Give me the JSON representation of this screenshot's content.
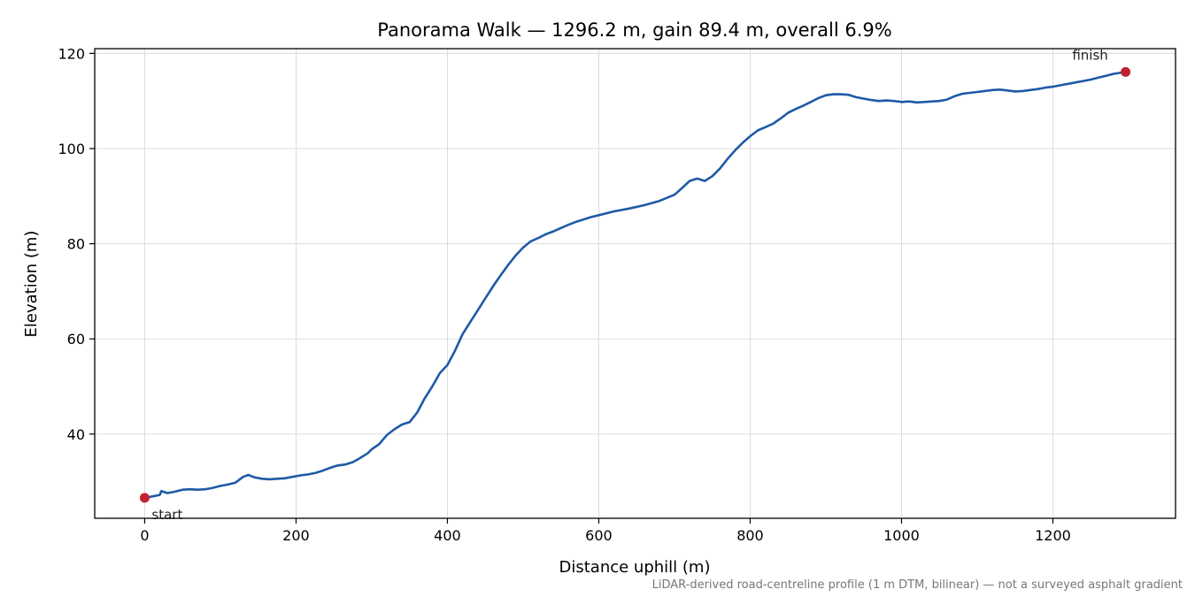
{
  "chart_data": {
    "type": "line",
    "title": "Panorama Walk — 1296.2 m, gain 89.4 m, overall 6.9%",
    "xlabel": "Distance uphill (m)",
    "ylabel": "Elevation (m)",
    "xlim": [
      -66,
      1362
    ],
    "ylim": [
      22.3,
      121
    ],
    "x_ticks": [
      0,
      200,
      400,
      600,
      800,
      1000,
      1200
    ],
    "y_ticks": [
      40,
      60,
      80,
      100,
      120
    ],
    "grid": true,
    "series": [
      {
        "color": "#1f5aa6",
        "x": [
          0,
          10,
          20,
          22,
          30,
          40,
          50,
          60,
          70,
          80,
          90,
          100,
          110,
          120,
          130,
          137,
          145,
          155,
          165,
          175,
          185,
          195,
          205,
          215,
          225,
          235,
          245,
          255,
          265,
          275,
          285,
          295,
          300,
          310,
          320,
          330,
          340,
          350,
          360,
          370,
          380,
          390,
          400,
          410,
          420,
          430,
          440,
          450,
          460,
          470,
          480,
          490,
          500,
          510,
          520,
          530,
          540,
          550,
          560,
          570,
          580,
          590,
          600,
          620,
          640,
          660,
          680,
          700,
          710,
          720,
          730,
          740,
          750,
          760,
          770,
          780,
          790,
          800,
          810,
          820,
          830,
          840,
          850,
          860,
          870,
          880,
          890,
          900,
          910,
          920,
          930,
          940,
          950,
          960,
          970,
          980,
          990,
          1000,
          1010,
          1020,
          1030,
          1040,
          1050,
          1060,
          1070,
          1080,
          1090,
          1100,
          1110,
          1120,
          1130,
          1140,
          1150,
          1160,
          1170,
          1180,
          1190,
          1200,
          1210,
          1220,
          1230,
          1240,
          1250,
          1260,
          1270,
          1280,
          1296
        ],
        "y": [
          26.6,
          26.9,
          27.2,
          28.0,
          27.6,
          27.9,
          28.3,
          28.4,
          28.3,
          28.4,
          28.7,
          29.1,
          29.4,
          29.8,
          31.0,
          31.4,
          30.9,
          30.6,
          30.5,
          30.6,
          30.7,
          31.0,
          31.3,
          31.5,
          31.8,
          32.3,
          32.9,
          33.4,
          33.6,
          34.1,
          35.0,
          36.0,
          36.8,
          37.9,
          39.8,
          41.0,
          42.0,
          42.5,
          44.5,
          47.5,
          50.0,
          52.8,
          54.5,
          57.5,
          61.0,
          63.5,
          66.0,
          68.5,
          71.0,
          73.3,
          75.5,
          77.5,
          79.2,
          80.5,
          81.2,
          82.0,
          82.6,
          83.3,
          84.0,
          84.6,
          85.1,
          85.6,
          86.0,
          86.8,
          87.4,
          88.1,
          89.0,
          90.3,
          91.7,
          93.2,
          93.7,
          93.2,
          94.2,
          95.8,
          97.8,
          99.6,
          101.2,
          102.6,
          103.8,
          104.5,
          105.2,
          106.3,
          107.5,
          108.3,
          109.0,
          109.8,
          110.6,
          111.2,
          111.4,
          111.4,
          111.3,
          110.8,
          110.5,
          110.2,
          110.0,
          110.1,
          110.0,
          109.8,
          109.9,
          109.7,
          109.8,
          109.9,
          110.0,
          110.3,
          111.0,
          111.5,
          111.7,
          111.9,
          112.1,
          112.3,
          112.4,
          112.2,
          112.0,
          112.1,
          112.3,
          112.5,
          112.8,
          113.0,
          113.3,
          113.6,
          113.9,
          114.2,
          114.5,
          114.9,
          115.3,
          115.7,
          116.1
        ]
      }
    ],
    "markers": [
      {
        "x": 0,
        "y": 26.6,
        "label": "start",
        "color": "#c0222f"
      },
      {
        "x": 1296,
        "y": 116.1,
        "label": "finish",
        "color": "#c0222f"
      }
    ],
    "footnote": "LiDAR-derived road-centreline profile (1 m DTM, bilinear) — not a surveyed asphalt gradient"
  }
}
